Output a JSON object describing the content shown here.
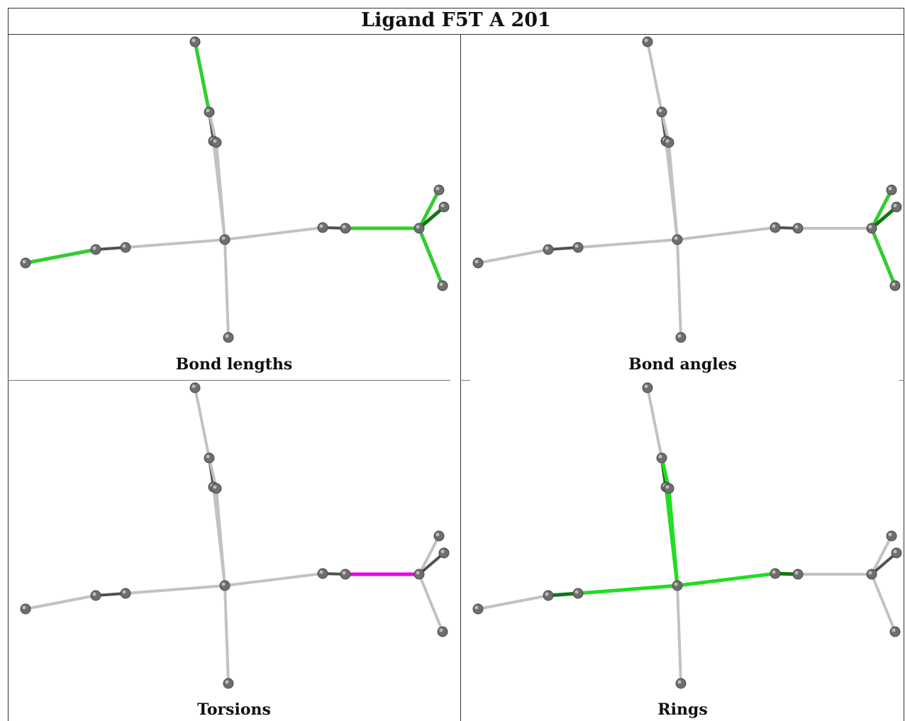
{
  "title": "Ligand F5T A 201",
  "panels": [
    {
      "caption": "Bond lengths",
      "highlight": "#33cc33",
      "highlight_dark": "#117711"
    },
    {
      "caption": "Bond angles",
      "highlight": "#33cc33",
      "highlight_dark": "#117711"
    },
    {
      "caption": "Torsions",
      "highlight": "#e600e6",
      "highlight_dark": "#990099"
    },
    {
      "caption": "Rings",
      "highlight": "#22dd22",
      "highlight_dark": "#117711"
    }
  ],
  "colors": {
    "atom": "#6e6e6e",
    "bond": "#c2c2c2",
    "bond_dark": "#505050"
  }
}
